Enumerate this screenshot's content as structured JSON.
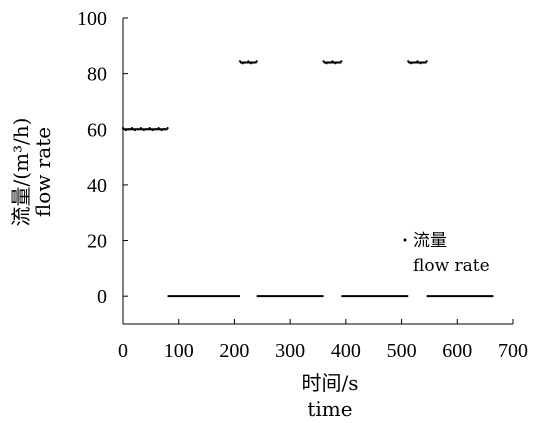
{
  "chart_data": {
    "type": "scatter",
    "title": "",
    "xlabel": [
      "时间/s",
      "time"
    ],
    "ylabel": [
      "流量/(m³/h)",
      "flow rate"
    ],
    "xlim": [
      0,
      700
    ],
    "ylim": [
      -10,
      100
    ],
    "xticks": [
      0,
      100,
      200,
      300,
      400,
      500,
      600,
      700
    ],
    "yticks": [
      0,
      20,
      40,
      60,
      80,
      100
    ],
    "x_tick_labels": [
      "0",
      "100",
      "200",
      "300",
      "400",
      "500",
      "600",
      "700"
    ],
    "y_tick_labels": [
      "0",
      "20",
      "40",
      "60",
      "80",
      "100"
    ],
    "grid": false,
    "legend": {
      "placement": "right-middle",
      "entries": [
        "流量",
        "flow rate"
      ]
    },
    "colors": {
      "series": "#000000",
      "axis": "#000000"
    },
    "series": [
      {
        "name": "流量 flow rate",
        "segments": [
          {
            "x": [
              0,
              80
            ],
            "y": 60
          },
          {
            "x": [
              80,
              210
            ],
            "y": 0
          },
          {
            "x": [
              210,
              240
            ],
            "y": 84
          },
          {
            "x": [
              240,
              360
            ],
            "y": 0
          },
          {
            "x": [
              360,
              392
            ],
            "y": 84
          },
          {
            "x": [
              392,
              512
            ],
            "y": 0
          },
          {
            "x": [
              512,
              545
            ],
            "y": 84
          },
          {
            "x": [
              545,
              665
            ],
            "y": 0
          }
        ]
      }
    ]
  }
}
